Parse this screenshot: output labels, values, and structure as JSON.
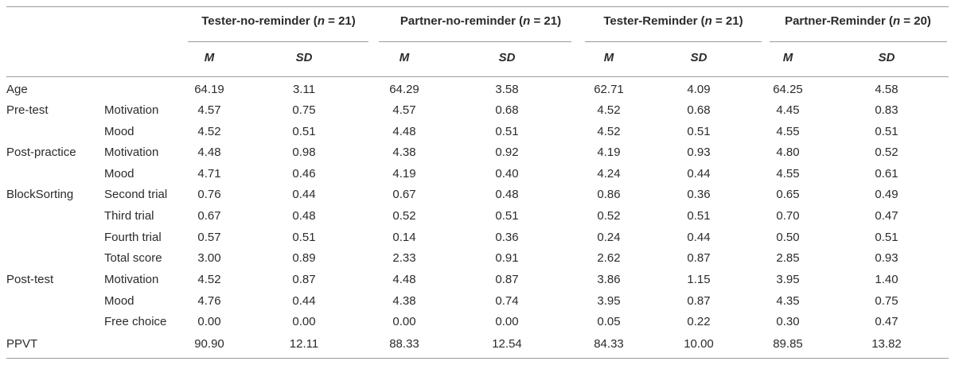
{
  "groups": [
    {
      "name": "Tester-no-reminder",
      "n_label": "n",
      "n_value": "21"
    },
    {
      "name": "Partner-no-reminder",
      "n_label": "n",
      "n_value": "21"
    },
    {
      "name": "Tester-Reminder",
      "n_label": "n",
      "n_value": "21"
    },
    {
      "name": "Partner-Reminder",
      "n_label": "n",
      "n_value": "20"
    }
  ],
  "stats": [
    "M",
    "SD"
  ],
  "rows": [
    {
      "section": "Age",
      "measure": "",
      "values": [
        "64.19",
        "3.11",
        "64.29",
        "3.58",
        "62.71",
        "4.09",
        "64.25",
        "4.58"
      ]
    },
    {
      "section": "Pre-test",
      "measure": "Motivation",
      "values": [
        "4.57",
        "0.75",
        "4.57",
        "0.68",
        "4.52",
        "0.68",
        "4.45",
        "0.83"
      ]
    },
    {
      "section": "",
      "measure": "Mood",
      "values": [
        "4.52",
        "0.51",
        "4.48",
        "0.51",
        "4.52",
        "0.51",
        "4.55",
        "0.51"
      ]
    },
    {
      "section": "Post-practice",
      "measure": "Motivation",
      "values": [
        "4.48",
        "0.98",
        "4.38",
        "0.92",
        "4.19",
        "0.93",
        "4.80",
        "0.52"
      ]
    },
    {
      "section": "",
      "measure": "Mood",
      "values": [
        "4.71",
        "0.46",
        "4.19",
        "0.40",
        "4.24",
        "0.44",
        "4.55",
        "0.61"
      ]
    },
    {
      "section": "BlockSorting",
      "measure": "Second trial",
      "values": [
        "0.76",
        "0.44",
        "0.67",
        "0.48",
        "0.86",
        "0.36",
        "0.65",
        "0.49"
      ]
    },
    {
      "section": "",
      "measure": "Third trial",
      "values": [
        "0.67",
        "0.48",
        "0.52",
        "0.51",
        "0.52",
        "0.51",
        "0.70",
        "0.47"
      ]
    },
    {
      "section": "",
      "measure": "Fourth trial",
      "values": [
        "0.57",
        "0.51",
        "0.14",
        "0.36",
        "0.24",
        "0.44",
        "0.50",
        "0.51"
      ]
    },
    {
      "section": "",
      "measure": "Total score",
      "values": [
        "3.00",
        "0.89",
        "2.33",
        "0.91",
        "2.62",
        "0.87",
        "2.85",
        "0.93"
      ]
    },
    {
      "section": "Post-test",
      "measure": "Motivation",
      "values": [
        "4.52",
        "0.87",
        "4.48",
        "0.87",
        "3.86",
        "1.15",
        "3.95",
        "1.40"
      ]
    },
    {
      "section": "",
      "measure": "Mood",
      "values": [
        "4.76",
        "0.44",
        "4.38",
        "0.74",
        "3.95",
        "0.87",
        "4.35",
        "0.75"
      ]
    },
    {
      "section": "",
      "measure": "Free choice",
      "values": [
        "0.00",
        "0.00",
        "0.00",
        "0.00",
        "0.05",
        "0.22",
        "0.30",
        "0.47"
      ]
    },
    {
      "section": "PPVT",
      "measure": "",
      "values": [
        "90.90",
        "12.11",
        "88.33",
        "12.54",
        "84.33",
        "10.00",
        "89.85",
        "13.82"
      ]
    }
  ]
}
